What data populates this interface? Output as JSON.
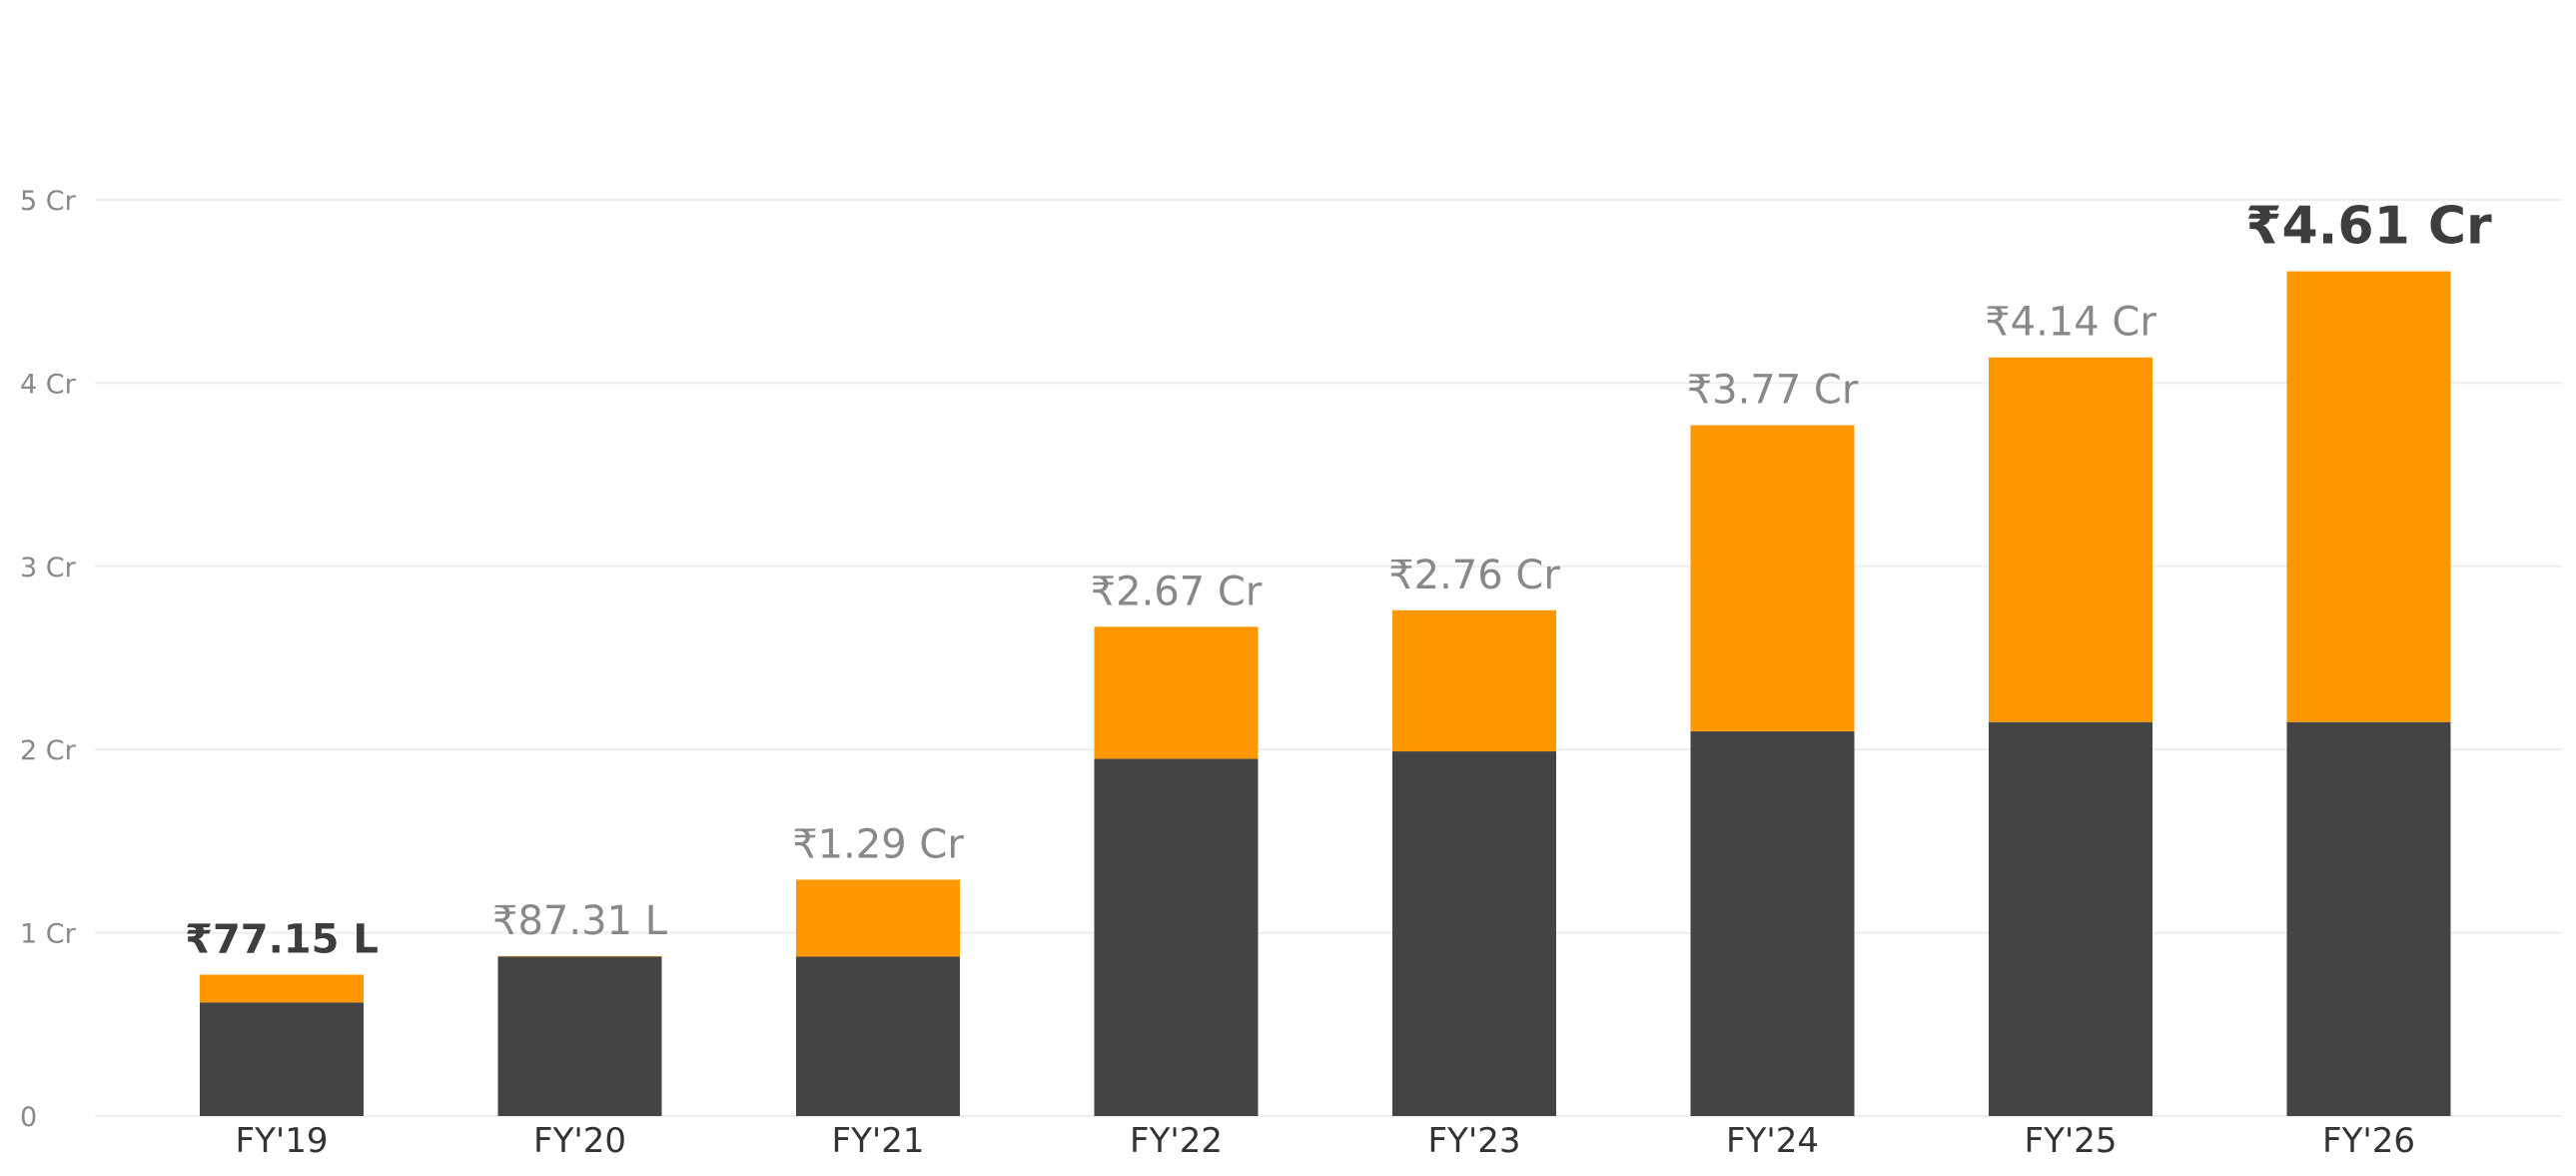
{
  "chart_data": {
    "type": "bar",
    "stacked": true,
    "categories": [
      "FY'19",
      "FY'20",
      "FY'21",
      "FY'22",
      "FY'23",
      "FY'24",
      "FY'25",
      "FY'26"
    ],
    "series": [
      {
        "values": [
          0.62,
          0.87,
          0.87,
          1.95,
          1.99,
          2.1,
          2.15,
          2.15
        ]
      },
      {
        "values": [
          0.1515,
          0.0031,
          0.42,
          0.72,
          0.77,
          1.67,
          1.99,
          2.46
        ]
      }
    ],
    "totals": [
      0.7715,
      0.8731,
      1.29,
      2.67,
      2.76,
      3.77,
      4.14,
      4.61
    ],
    "total_labels": [
      "₹77.15 L",
      "₹87.31 L",
      "₹1.29 Cr",
      "₹2.67 Cr",
      "₹2.76 Cr",
      "₹3.77 Cr",
      "₹4.14 Cr",
      "₹4.61 Cr"
    ],
    "emphasized_labels": [
      0,
      7
    ],
    "ylim": [
      0,
      5
    ],
    "yticks": [
      0,
      1,
      2,
      3,
      4,
      5
    ],
    "ytick_labels": [
      "0",
      "1 Cr",
      "2 Cr",
      "3 Cr",
      "4 Cr",
      "5 Cr"
    ],
    "grid": true,
    "colors": {
      "base": "#444444",
      "top": "#ff9800",
      "grid": "#eeeeee"
    },
    "title": "",
    "xlabel": "",
    "ylabel": ""
  }
}
